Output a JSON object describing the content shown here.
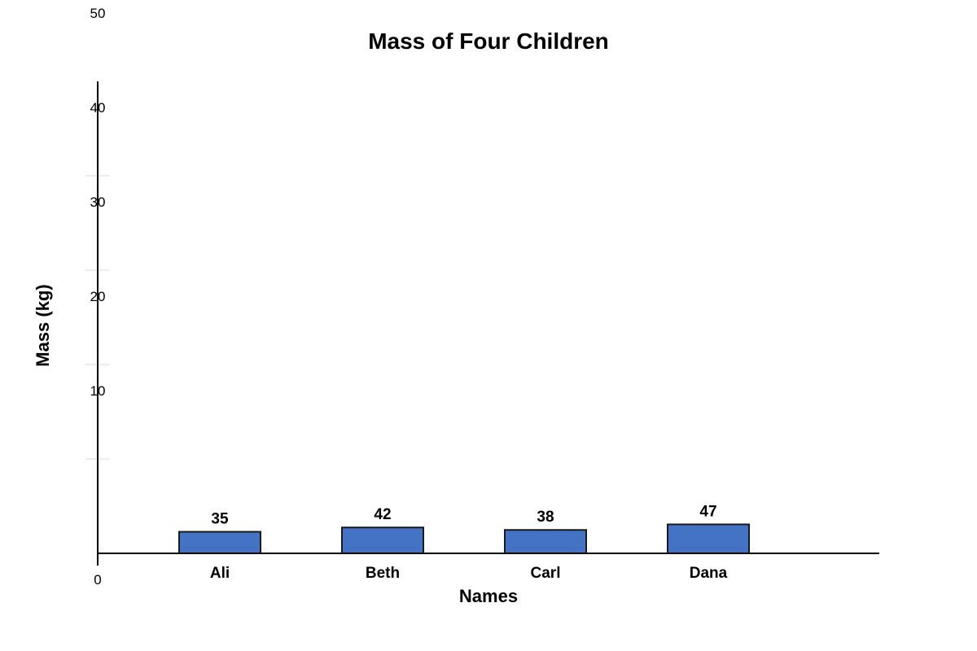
{
  "chart_data": {
    "type": "bar",
    "title": "Mass of Four Children",
    "xlabel": "Names",
    "ylabel": "Mass (kg)",
    "categories": [
      "Ali",
      "Beth",
      "Carl",
      "Dana"
    ],
    "values": [
      35,
      42,
      38,
      47
    ],
    "data_labels": [
      "35",
      "42",
      "38",
      "47"
    ],
    "y_tick_labels": [
      "0",
      "10",
      "20",
      "30",
      "40",
      "50"
    ],
    "bar_color": "#4472c4",
    "bar_outline_color": "#1a1a1a",
    "grid": true,
    "legend": "none"
  }
}
